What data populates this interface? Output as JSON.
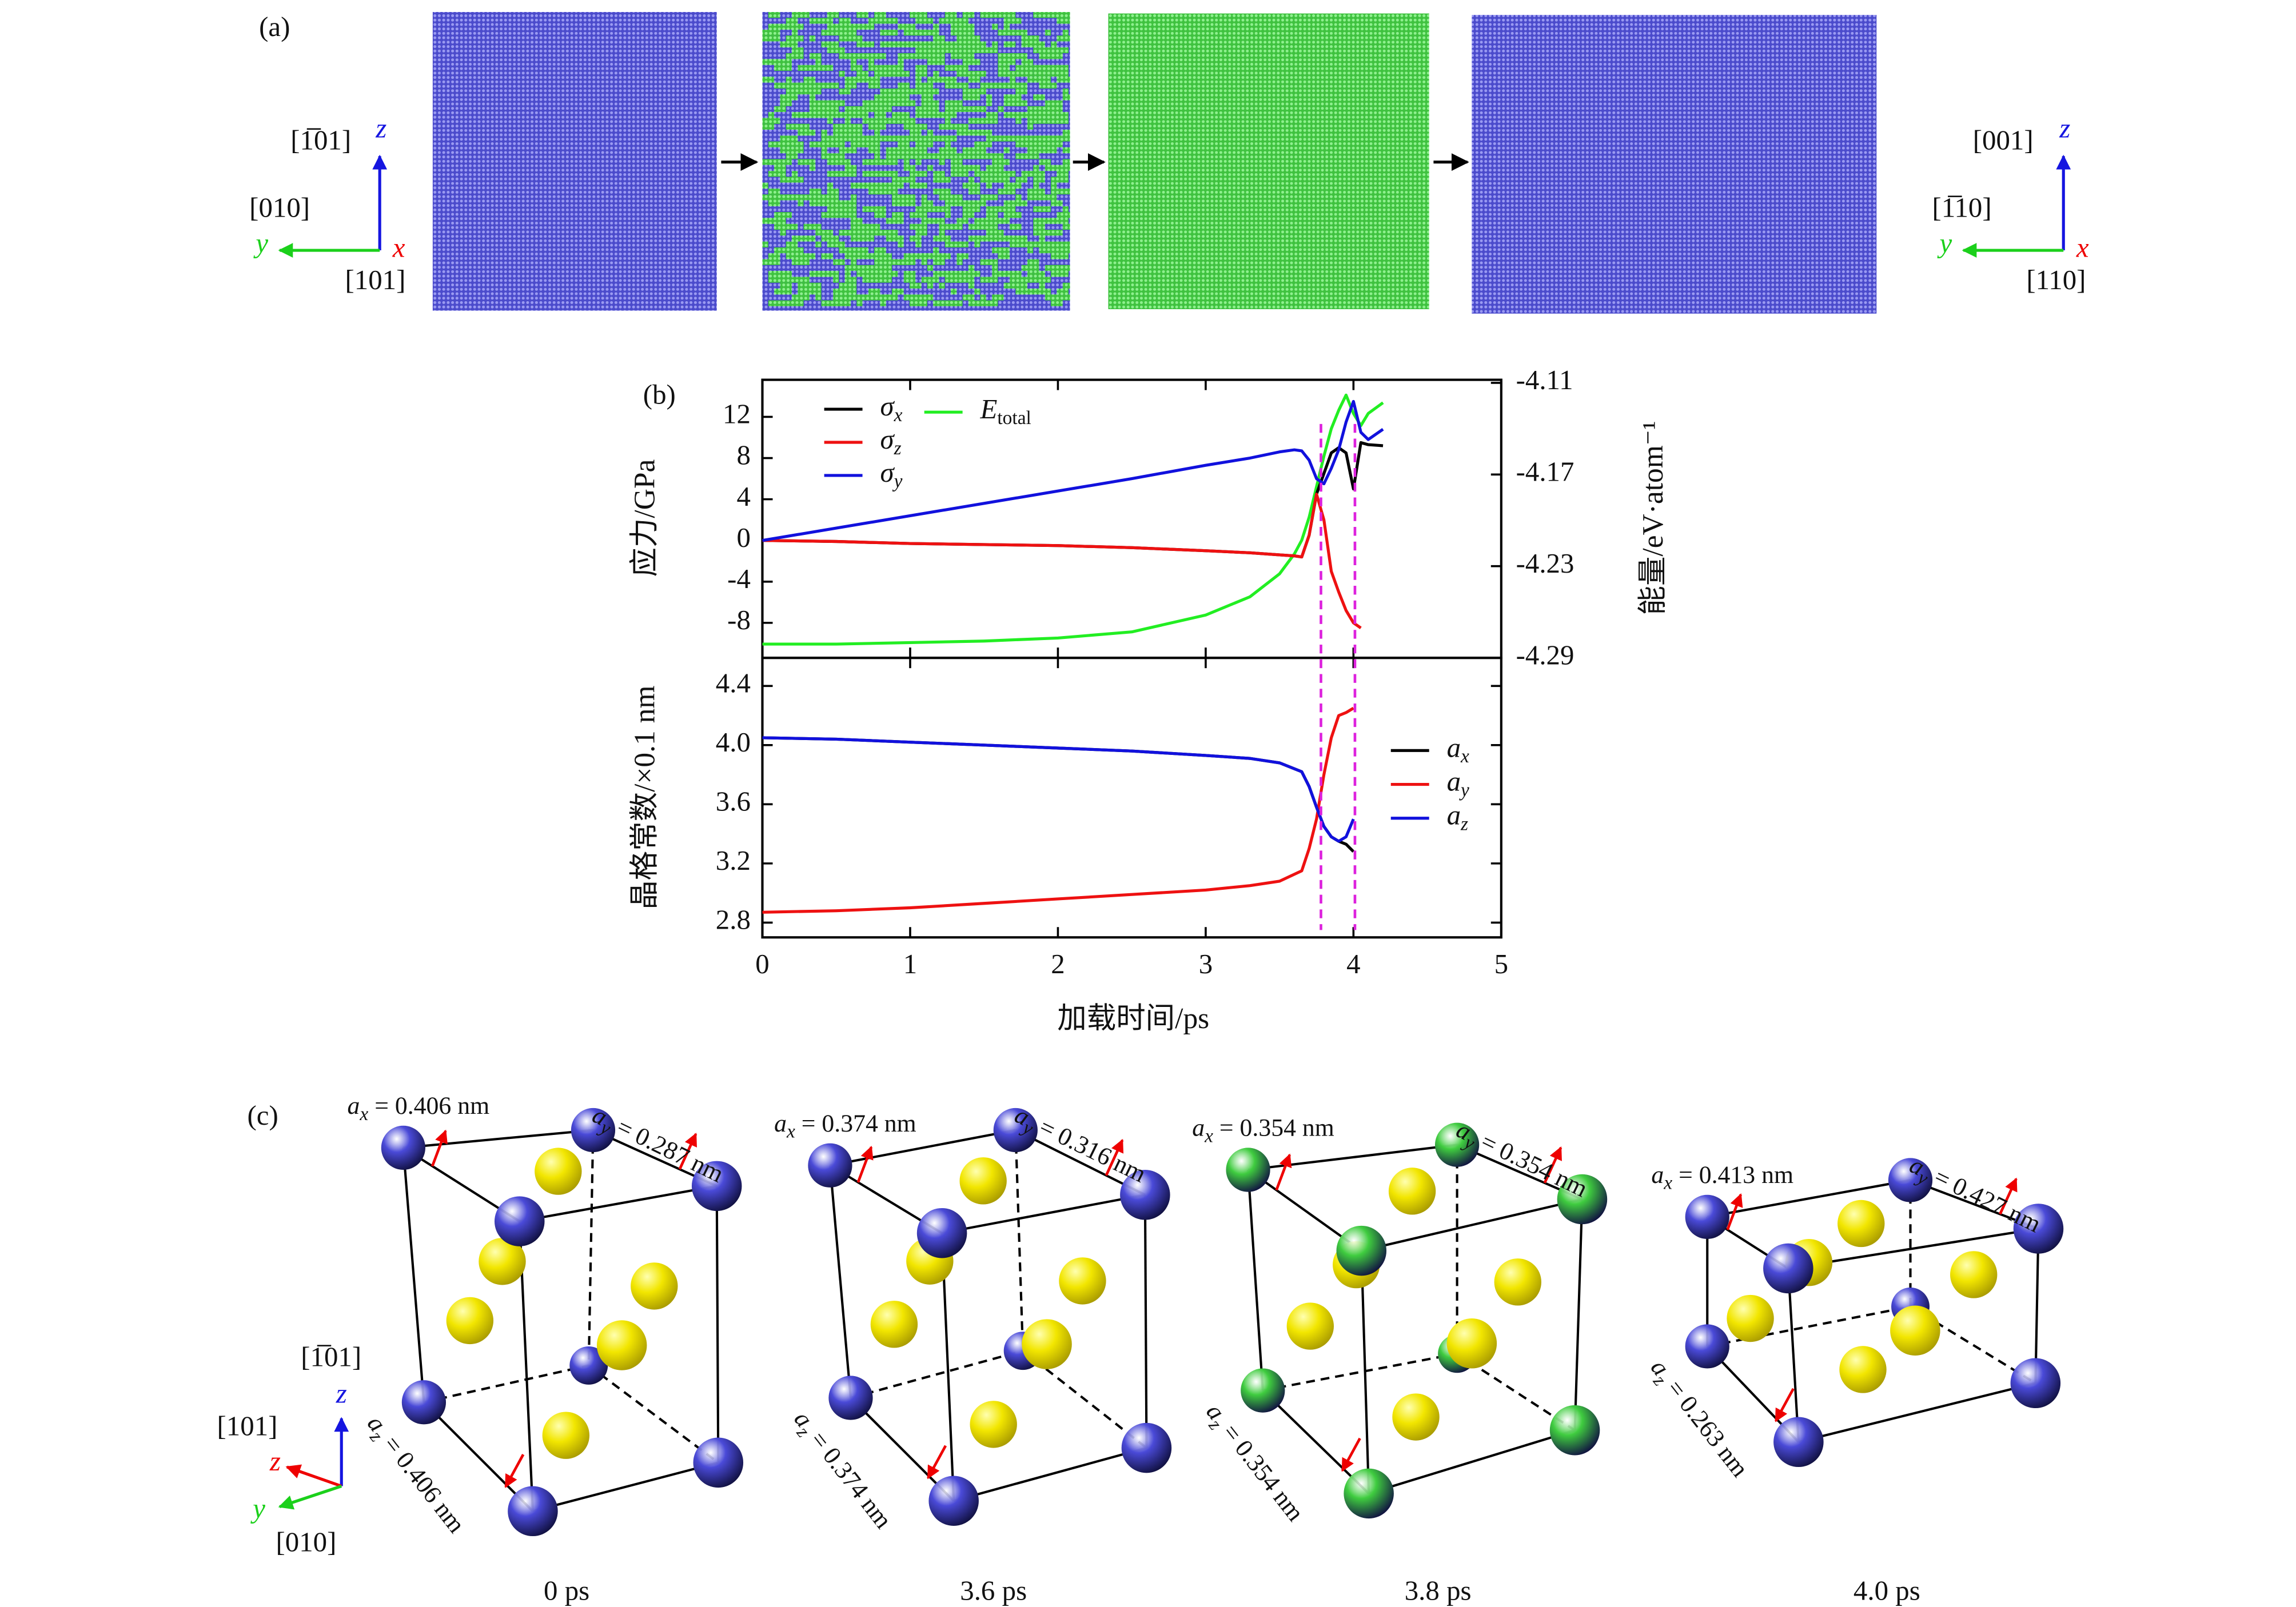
{
  "panel_a": {
    "label": "(a)",
    "left_axes": {
      "z_dir": "[1̅01]",
      "y_dir": "[010]",
      "x_dir": "[101]",
      "z": "z",
      "y": "y",
      "x": "x"
    },
    "right_axes": {
      "z_dir": "[001]",
      "y_dir": "[1̅10]",
      "x_dir": "[110]",
      "z": "z",
      "y": "y",
      "x": "x"
    }
  },
  "chart_data": [
    {
      "type": "line",
      "panel_label": "(b)",
      "ylabel": "应力/GPa",
      "y2label": "能量/eV·atom⁻¹",
      "x": [
        0,
        0.5,
        1,
        1.5,
        2,
        2.5,
        3,
        3.3,
        3.5,
        3.6,
        3.65,
        3.7,
        3.75,
        3.8,
        3.85,
        3.9,
        3.95,
        4.0,
        4.05,
        4.1,
        4.2
      ],
      "series": [
        {
          "name": "σx",
          "color": "#000000",
          "values": [
            0,
            -0.1,
            -0.3,
            -0.4,
            -0.5,
            -0.7,
            -1.0,
            -1.2,
            -1.4,
            -1.5,
            -1.6,
            0.5,
            4.5,
            6.5,
            8.5,
            9.0,
            8.5,
            5.0,
            9.5,
            9.3,
            9.2
          ]
        },
        {
          "name": "σz",
          "color": "#ee1111",
          "values": [
            0,
            -0.1,
            -0.3,
            -0.4,
            -0.5,
            -0.7,
            -1.0,
            -1.2,
            -1.4,
            -1.5,
            -1.6,
            0.5,
            4.5,
            2.0,
            -3.0,
            -5.0,
            -6.8,
            -8.0,
            -8.5,
            null,
            null
          ]
        },
        {
          "name": "σy",
          "color": "#1111dd",
          "values": [
            0,
            1.2,
            2.4,
            3.6,
            4.8,
            6.0,
            7.3,
            8.0,
            8.6,
            8.8,
            8.7,
            7.8,
            6.0,
            5.5,
            7.0,
            8.8,
            11.5,
            13.5,
            10.5,
            9.8,
            10.8
          ]
        },
        {
          "name": "Etotal",
          "color": "#22ee22",
          "axis": "y2",
          "values": [
            -4.281,
            -4.281,
            -4.28,
            -4.279,
            -4.277,
            -4.273,
            -4.262,
            -4.25,
            -4.235,
            -4.222,
            -4.213,
            -4.198,
            -4.178,
            -4.158,
            -4.14,
            -4.128,
            -4.118,
            -4.13,
            -4.138,
            -4.13,
            -4.123
          ]
        }
      ],
      "xlim": [
        0,
        5
      ],
      "ylim": [
        -11.4,
        15.6
      ],
      "yticks": [
        -8,
        -4,
        0,
        4,
        8,
        12
      ],
      "y2lim": [
        -4.29,
        -4.108
      ],
      "y2ticks": [
        -4.29,
        -4.23,
        -4.17,
        -4.11
      ],
      "vlines": [
        3.78,
        4.01
      ],
      "vline_color": "#dd22dd",
      "legend": "upper left"
    },
    {
      "type": "line",
      "ylabel": "晶格常数/×0.1 nm",
      "xlabel": "加载时间/ps",
      "x": [
        0,
        0.5,
        1,
        1.5,
        2,
        2.5,
        3,
        3.3,
        3.5,
        3.65,
        3.7,
        3.75,
        3.8,
        3.85,
        3.9,
        3.95,
        4.0
      ],
      "series": [
        {
          "name": "ax",
          "color": "#000000",
          "values": [
            4.05,
            4.04,
            4.02,
            4.0,
            3.98,
            3.96,
            3.93,
            3.91,
            3.88,
            3.82,
            3.72,
            3.58,
            3.45,
            3.38,
            3.35,
            3.33,
            3.28
          ]
        },
        {
          "name": "ay",
          "color": "#ee1111",
          "values": [
            2.87,
            2.88,
            2.9,
            2.93,
            2.96,
            2.99,
            3.02,
            3.05,
            3.08,
            3.15,
            3.3,
            3.5,
            3.8,
            4.05,
            4.2,
            4.22,
            4.25
          ]
        },
        {
          "name": "az",
          "color": "#1111dd",
          "values": [
            4.05,
            4.04,
            4.02,
            4.0,
            3.98,
            3.96,
            3.93,
            3.91,
            3.88,
            3.82,
            3.72,
            3.58,
            3.45,
            3.38,
            3.35,
            3.38,
            3.5
          ]
        }
      ],
      "xlim": [
        0,
        5
      ],
      "xticks": [
        0,
        1,
        2,
        3,
        4,
        5
      ],
      "ylim": [
        2.7,
        4.59
      ],
      "yticks": [
        2.8,
        3.2,
        3.6,
        {
          "value": 4,
          "label": "4.0"
        },
        4.4
      ],
      "legend": "right"
    }
  ],
  "panel_c": {
    "label": "(c)",
    "axes": {
      "z_dir": "[1̅01]",
      "x_dir": "[101]",
      "y_dir": "[010]",
      "z": "z",
      "x": "z",
      "y": "y"
    },
    "cells": [
      {
        "ax": "ax = 0.406 nm",
        "ay": "ay = 0.287 nm",
        "az": "az = 0.406 nm",
        "time": "0 ps",
        "corner_color": "#4a4ad8"
      },
      {
        "ax": "ax = 0.374 nm",
        "ay": "ay = 0.316 nm",
        "az": "az = 0.374 nm",
        "time": "3.6 ps",
        "corner_color": "#4a4ad8"
      },
      {
        "ax": "ax = 0.354 nm",
        "ay": "ay = 0.354 nm",
        "az": "az = 0.354 nm",
        "time": "3.8 ps",
        "corner_color": "#3fcc3f"
      },
      {
        "ax": "ax = 0.413 nm",
        "ay": "ay = 0.427 nm",
        "az": "az = 0.263 nm",
        "time": "4.0 ps",
        "corner_color": "#4a4ad8"
      }
    ]
  }
}
